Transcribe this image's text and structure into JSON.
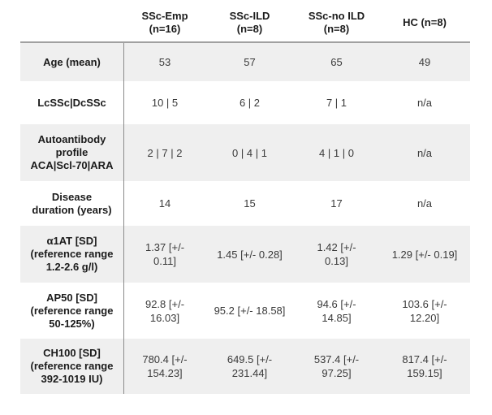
{
  "table": {
    "corner_label": "",
    "column_headers": [
      "SSc-Emp\n(n=16)",
      "SSc-ILD\n(n=8)",
      "SSc-no ILD\n(n=8)",
      "HC (n=8)"
    ],
    "rows": [
      {
        "label": "Age (mean)",
        "values": [
          "53",
          "57",
          "65",
          "49"
        ]
      },
      {
        "label": "LcSSc|DcSSc",
        "values": [
          "10 | 5",
          "6 | 2",
          "7 | 1",
          "n/a"
        ]
      },
      {
        "label": "Autoantibody\nprofile\nACA|Scl-70|ARA",
        "values": [
          "2 | 7 | 2",
          "0 | 4 | 1",
          "4 | 1 | 0",
          "n/a"
        ]
      },
      {
        "label": "Disease\nduration (years)",
        "values": [
          "14",
          "15",
          "17",
          "n/a"
        ]
      },
      {
        "label": "α1AT [SD]\n(reference range\n1.2-2.6 g/l)",
        "values": [
          "1.37 [+/-\n0.11]",
          "1.45 [+/- 0.28]",
          "1.42 [+/-\n0.13]",
          "1.29 [+/- 0.19]"
        ]
      },
      {
        "label": "AP50 [SD]\n(reference range\n50-125%)",
        "values": [
          "92.8 [+/-\n16.03]",
          "95.2 [+/- 18.58]",
          "94.6 [+/-\n14.85]",
          "103.6 [+/-\n12.20]"
        ]
      },
      {
        "label": "CH100 [SD]\n(reference range\n392-1019 IU)",
        "values": [
          "780.4 [+/-\n154.23]",
          "649.5 [+/-\n231.44]",
          "537.4 [+/-\n97.25]",
          "817.4 [+/-\n159.15]"
        ]
      }
    ]
  },
  "colors": {
    "row_shade": "#efefef",
    "header_rule": "#a0a0a0",
    "column_rule": "#8a8a8a",
    "label_text": "#1b1b1b",
    "value_text": "#3a3a3a"
  },
  "chart_data": {
    "type": "table",
    "columns": [
      "",
      "SSc-Emp (n=16)",
      "SSc-ILD (n=8)",
      "SSc-no ILD (n=8)",
      "HC (n=8)"
    ],
    "rows": [
      [
        "Age (mean)",
        "53",
        "57",
        "65",
        "49"
      ],
      [
        "LcSSc|DcSSc",
        "10 | 5",
        "6 | 2",
        "7 | 1",
        "n/a"
      ],
      [
        "Autoantibody profile ACA|Scl-70|ARA",
        "2 | 7 | 2",
        "0 | 4 | 1",
        "4 | 1 | 0",
        "n/a"
      ],
      [
        "Disease duration (years)",
        "14",
        "15",
        "17",
        "n/a"
      ],
      [
        "α1AT [SD] (reference range 1.2-2.6 g/l)",
        "1.37 [+/- 0.11]",
        "1.45 [+/- 0.28]",
        "1.42 [+/- 0.13]",
        "1.29 [+/- 0.19]"
      ],
      [
        "AP50 [SD] (reference range 50-125%)",
        "92.8 [+/- 16.03]",
        "95.2 [+/- 18.58]",
        "94.6 [+/- 14.85]",
        "103.6 [+/- 12.20]"
      ],
      [
        "CH100 [SD] (reference range 392-1019 IU)",
        "780.4 [+/- 154.23]",
        "649.5 [+/- 231.44]",
        "537.4 [+/- 97.25]",
        "817.4 [+/- 159.15]"
      ]
    ]
  }
}
